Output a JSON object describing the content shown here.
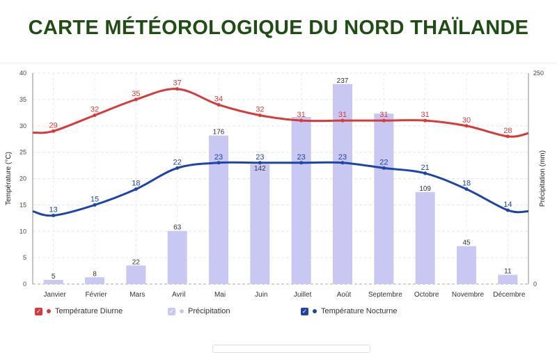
{
  "title": "CARTE MÉTÉOROLOGIQUE DU NORD THAÏLANDE",
  "chart_data": {
    "type": "bar+line",
    "categories": [
      "Janvier",
      "Février",
      "Mars",
      "Avril",
      "Mai",
      "Juin",
      "Juillet",
      "Août",
      "Septembre",
      "Octobre",
      "Novembre",
      "Décembre"
    ],
    "series": [
      {
        "name": "Température Diurne",
        "type": "line",
        "axis": "left",
        "color": "#d63a3a",
        "values": [
          29,
          32,
          35,
          37,
          34,
          32,
          31,
          31,
          31,
          31,
          30,
          28
        ]
      },
      {
        "name": "Précipitation",
        "type": "bar",
        "axis": "right",
        "color": "#c8c8f2",
        "values": [
          5,
          8,
          22,
          63,
          176,
          142,
          null,
          237,
          null,
          109,
          45,
          11
        ]
      },
      {
        "name": "Température Nocturne",
        "type": "line",
        "axis": "left",
        "color": "#1e44a8",
        "values": [
          13,
          15,
          18,
          22,
          23,
          23,
          23,
          23,
          22,
          21,
          18,
          14
        ]
      }
    ],
    "precip_unlabeled_estimates": {
      "Juillet": 198,
      "Septembre": 202
    },
    "ylabel_left": "Température (°C)",
    "ylim_left": [
      0,
      40
    ],
    "yticks_left": [
      0,
      5,
      10,
      15,
      20,
      25,
      30,
      35,
      40
    ],
    "ylabel_right": "Précipitation (mm)",
    "ylim_right": [
      0,
      250
    ],
    "yticks_right": [
      0,
      250
    ],
    "grid": true,
    "legend": "bottom-left"
  }
}
